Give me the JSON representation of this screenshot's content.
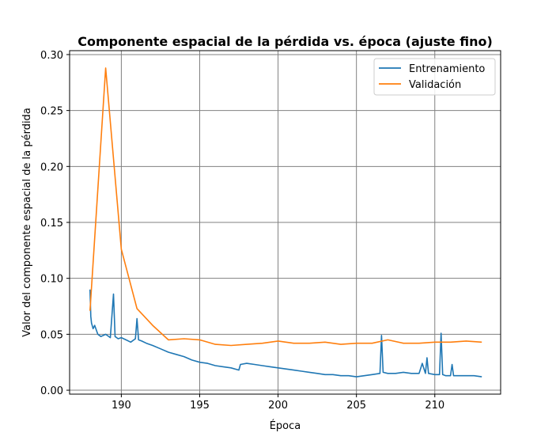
{
  "chart_data": {
    "type": "line",
    "title": "Componente espacial de la pérdida vs. época (ajuste fino)",
    "xlabel": "Época",
    "ylabel": "Valor del componente espacial de la pérdida",
    "xlim": [
      186.7,
      214.2
    ],
    "ylim": [
      -0.0035,
      0.3035
    ],
    "xticks": [
      190,
      195,
      200,
      205,
      210
    ],
    "yticks": [
      0.0,
      0.05,
      0.1,
      0.15,
      0.2,
      0.25,
      0.3
    ],
    "ytick_labels": [
      "0.00",
      "0.05",
      "0.10",
      "0.15",
      "0.20",
      "0.25",
      "0.30"
    ],
    "grid": true,
    "legend_position": "top-right",
    "series": [
      {
        "name": "Entrenamiento",
        "color": "#1f77b4",
        "x": [
          188.0,
          188.05,
          188.1,
          188.2,
          188.3,
          188.5,
          188.7,
          189.0,
          189.3,
          189.5,
          189.6,
          189.8,
          190.0,
          190.3,
          190.6,
          190.9,
          191.0,
          191.1,
          191.3,
          191.6,
          192.0,
          192.5,
          193.0,
          193.5,
          194.0,
          194.5,
          195.0,
          195.5,
          196.0,
          196.5,
          197.0,
          197.5,
          197.6,
          198.0,
          198.5,
          199.0,
          199.5,
          200.0,
          200.5,
          201.0,
          201.5,
          202.0,
          202.5,
          203.0,
          203.5,
          204.0,
          204.5,
          205.0,
          205.5,
          206.0,
          206.5,
          206.6,
          206.7,
          207.0,
          207.5,
          208.0,
          208.5,
          209.0,
          209.2,
          209.4,
          209.5,
          209.6,
          210.0,
          210.3,
          210.4,
          210.5,
          210.7,
          211.0,
          211.1,
          211.2,
          211.5,
          212.0,
          212.5,
          213.0
        ],
        "y": [
          0.09,
          0.066,
          0.06,
          0.055,
          0.058,
          0.05,
          0.048,
          0.05,
          0.047,
          0.086,
          0.048,
          0.046,
          0.047,
          0.045,
          0.043,
          0.046,
          0.064,
          0.045,
          0.044,
          0.042,
          0.04,
          0.037,
          0.034,
          0.032,
          0.03,
          0.027,
          0.025,
          0.024,
          0.022,
          0.021,
          0.02,
          0.018,
          0.023,
          0.024,
          0.023,
          0.022,
          0.021,
          0.02,
          0.019,
          0.018,
          0.017,
          0.016,
          0.015,
          0.014,
          0.014,
          0.013,
          0.013,
          0.012,
          0.013,
          0.014,
          0.015,
          0.049,
          0.016,
          0.015,
          0.015,
          0.016,
          0.015,
          0.015,
          0.024,
          0.015,
          0.029,
          0.015,
          0.014,
          0.014,
          0.051,
          0.014,
          0.013,
          0.013,
          0.023,
          0.013,
          0.013,
          0.013,
          0.013,
          0.012
        ]
      },
      {
        "name": "Validación",
        "color": "#ff7f0e",
        "x": [
          188,
          189,
          190,
          191,
          192,
          193,
          194,
          195,
          196,
          197,
          198,
          199,
          200,
          201,
          202,
          203,
          204,
          205,
          206,
          207,
          208,
          209,
          210,
          211,
          212,
          213
        ],
        "y": [
          0.071,
          0.288,
          0.126,
          0.073,
          0.058,
          0.045,
          0.046,
          0.045,
          0.041,
          0.04,
          0.041,
          0.042,
          0.044,
          0.042,
          0.042,
          0.043,
          0.041,
          0.042,
          0.042,
          0.045,
          0.042,
          0.042,
          0.043,
          0.043,
          0.044,
          0.043
        ]
      }
    ]
  }
}
